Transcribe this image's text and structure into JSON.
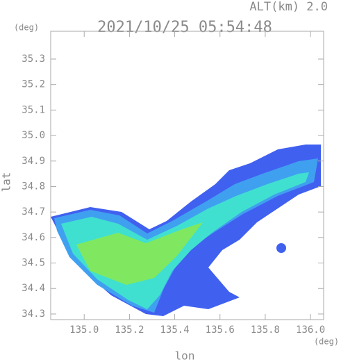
{
  "chart_data": {
    "type": "radar-map",
    "title": "2021/10/25 05:54:48",
    "subtitle": "ALT(km) 2.0",
    "x_label": "lon",
    "y_label": "lat",
    "x_unit": "(deg)",
    "y_unit": "(deg)",
    "xlim": [
      134.852,
      136.058
    ],
    "ylim": [
      34.278,
      35.409
    ],
    "xticks": [
      {
        "value": 135.0,
        "label": "135.0"
      },
      135.2,
      135.4,
      135.6,
      135.8,
      {
        "value": 136.0,
        "label": "136.0"
      }
    ],
    "yticks": [
      34.3,
      34.4,
      34.5,
      34.6,
      34.7,
      34.8,
      34.9,
      {
        "value": 35.0,
        "label": "35.0"
      },
      35.1,
      35.2,
      35.3
    ]
  }
}
